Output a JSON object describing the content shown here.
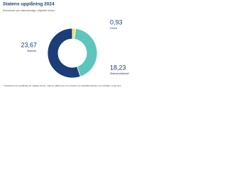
{
  "chart_data": {
    "type": "donut",
    "title": "Statens upplåning 2024",
    "subtitle": "Emissioner per instrumenttyp, miljarder kronor",
    "categories": [
      "Gröna",
      "Statsskuldväxlar*",
      "Statsobl."
    ],
    "values": [
      0.93,
      18.23,
      23.67
    ],
    "value_labels": [
      "0,93",
      "18,23",
      "23,67"
    ],
    "colors": [
      "#f1e05a",
      "#5cc6bd",
      "#1c3d78"
    ],
    "footnote": "* Inkluderar inte upplåning för statliga fonder, statens affärsverk och emission av skuldförbindelser som förfaller under året"
  }
}
